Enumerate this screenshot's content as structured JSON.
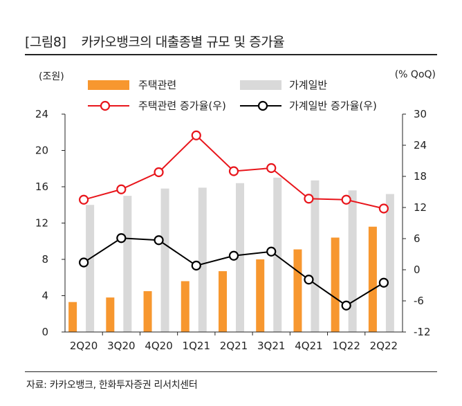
{
  "header": {
    "tag": "[그림8]",
    "title": "카카오뱅크의 대출종별 규모 및 증가율"
  },
  "units": {
    "left": "(조원)",
    "right": "(% QoQ)"
  },
  "source": "자료: 카카오뱅크, 한화투자증권 리서치센터",
  "colors": {
    "housing_bar": "#F7972F",
    "household_bar": "#D9D9D9",
    "housing_line": "#E8151B",
    "household_line": "#000000"
  },
  "chart_data": {
    "type": "bar",
    "categories": [
      "2Q20",
      "3Q20",
      "4Q20",
      "1Q21",
      "2Q21",
      "3Q21",
      "4Q21",
      "1Q22",
      "2Q22"
    ],
    "ylim_left": [
      0,
      24
    ],
    "yticks_left": [
      "0",
      "4",
      "8",
      "12",
      "16",
      "20",
      "24"
    ],
    "ylim_right": [
      -12,
      30
    ],
    "yticks_right": [
      "-12",
      "-6",
      "0",
      "6",
      "12",
      "18",
      "24",
      "30"
    ],
    "grid": false,
    "legend_position": "top",
    "series": [
      {
        "name": "주택관련",
        "type": "bar",
        "axis": "left",
        "values": [
          3.3,
          3.8,
          4.5,
          5.6,
          6.7,
          8.0,
          9.1,
          10.4,
          11.6
        ]
      },
      {
        "name": "가계일반",
        "type": "bar",
        "axis": "left",
        "values": [
          14.0,
          15.0,
          15.8,
          15.9,
          16.4,
          17.0,
          16.7,
          15.6,
          15.2
        ]
      },
      {
        "name": "주택관련 증가율(우)",
        "type": "line",
        "axis": "right",
        "values": [
          13.5,
          15.5,
          18.8,
          25.9,
          19.0,
          19.6,
          13.7,
          13.5,
          11.8
        ]
      },
      {
        "name": "가계일반 증가율(우)",
        "type": "line",
        "axis": "right",
        "values": [
          1.4,
          6.1,
          5.7,
          0.8,
          2.7,
          3.5,
          -1.9,
          -6.9,
          -2.5
        ]
      }
    ]
  }
}
